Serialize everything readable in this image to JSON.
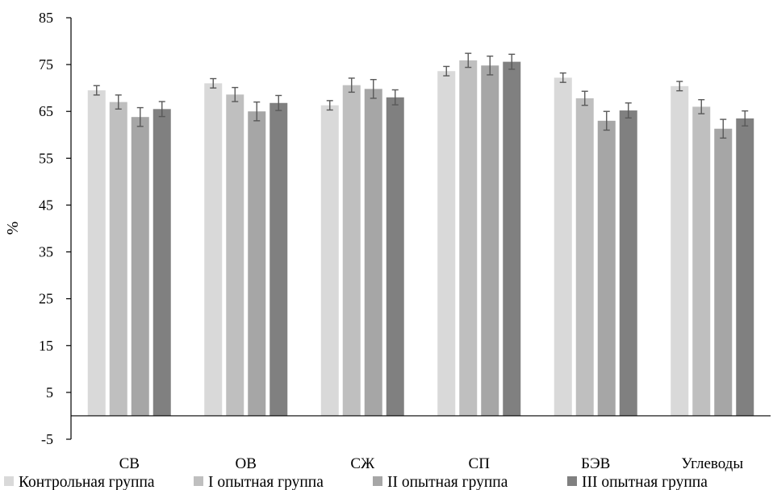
{
  "chart_data": {
    "type": "bar",
    "title": "",
    "xlabel": "",
    "ylabel": "%",
    "ylim": [
      -5,
      85
    ],
    "yticks": [
      -5,
      5,
      15,
      25,
      35,
      45,
      55,
      65,
      75,
      85
    ],
    "grid": false,
    "legend_position": "bottom",
    "categories": [
      "СВ",
      "ОВ",
      "СЖ",
      "СП",
      "БЭВ",
      "Углеводы"
    ],
    "series": [
      {
        "name": "Контрольная группа",
        "color": "#d9d9d9",
        "values": [
          69.5,
          71.0,
          66.3,
          73.6,
          72.2,
          70.4
        ],
        "errors": [
          1.0,
          1.0,
          1.0,
          1.0,
          1.0,
          1.0
        ]
      },
      {
        "name": "I опытная группа",
        "color": "#bfbfbf",
        "values": [
          67.0,
          68.6,
          70.6,
          75.9,
          67.8,
          66.0
        ],
        "errors": [
          1.5,
          1.5,
          1.5,
          1.5,
          1.5,
          1.5
        ]
      },
      {
        "name": "II опытная группа",
        "color": "#a6a6a6",
        "values": [
          63.8,
          65.0,
          69.8,
          74.8,
          63.0,
          61.3
        ],
        "errors": [
          2.0,
          2.0,
          2.0,
          2.0,
          2.0,
          2.0
        ]
      },
      {
        "name": "III опытная группа",
        "color": "#808080",
        "values": [
          65.5,
          66.8,
          68.0,
          75.6,
          65.2,
          63.5
        ],
        "errors": [
          1.6,
          1.6,
          1.6,
          1.6,
          1.6,
          1.6
        ]
      }
    ]
  }
}
